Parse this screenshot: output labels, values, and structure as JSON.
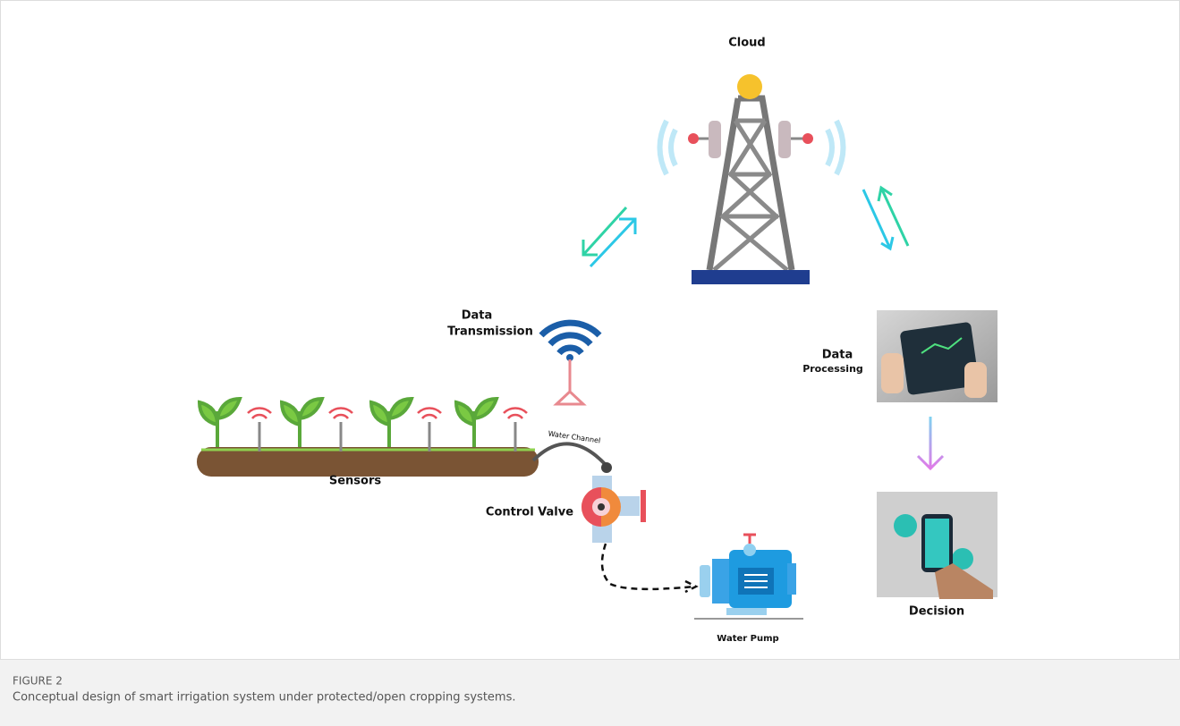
{
  "figure": {
    "labels": {
      "cloud": "Cloud",
      "data_transmission": [
        "Data",
        "Transmission"
      ],
      "data_processing": [
        "Data",
        "Processing"
      ],
      "sensors": "Sensors",
      "water_channel": "Water Channel",
      "control_valve": "Control Valve",
      "water_pump": "Water Pump",
      "decision": "Decision"
    }
  },
  "caption": {
    "label": "FIGURE 2",
    "text": "Conceptual design of smart irrigation system under protected/open cropping systems."
  }
}
